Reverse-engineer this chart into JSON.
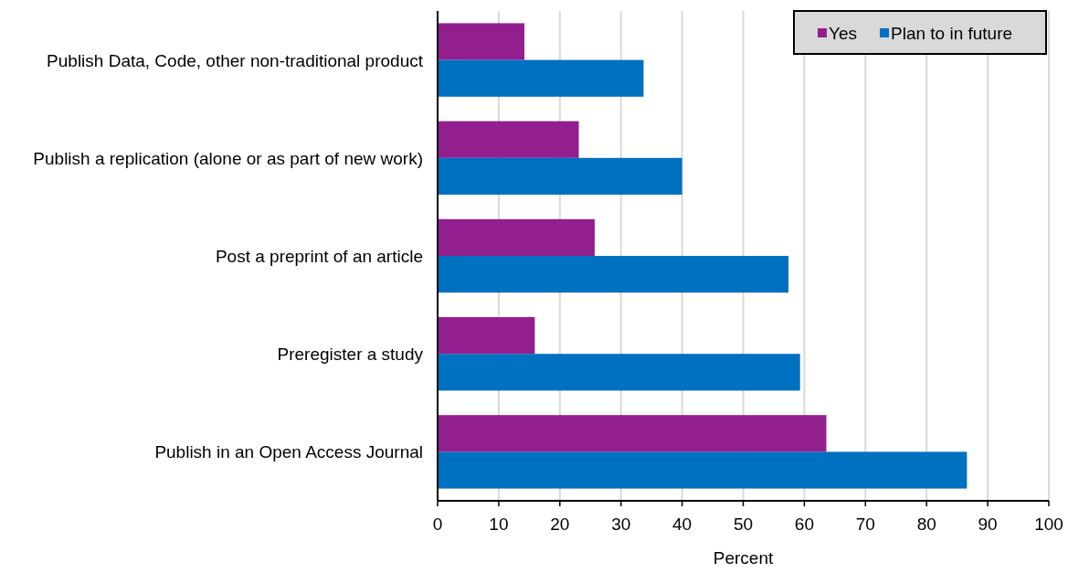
{
  "chart_data": {
    "type": "bar",
    "orientation": "horizontal",
    "xlabel": "Percent",
    "categories": [
      "Publish Data, Code, other non-traditional product",
      "Publish a replication (alone or as part of new work)",
      "Post a preprint of an article",
      "Preregister a study",
      "Publish in an Open Access Journal"
    ],
    "series": [
      {
        "name": "Yes",
        "color": "#931f8f",
        "values": [
          14.2,
          23.1,
          25.7,
          15.9,
          63.6
        ]
      },
      {
        "name": "Plan to in future",
        "color": "#0070c0",
        "values": [
          33.7,
          40.0,
          57.4,
          59.3,
          86.6
        ]
      }
    ],
    "xlim": [
      0,
      100
    ],
    "xticks": [
      0,
      10,
      20,
      30,
      40,
      50,
      60,
      70,
      80,
      90,
      100
    ],
    "grid": "x",
    "legend": "top right"
  }
}
